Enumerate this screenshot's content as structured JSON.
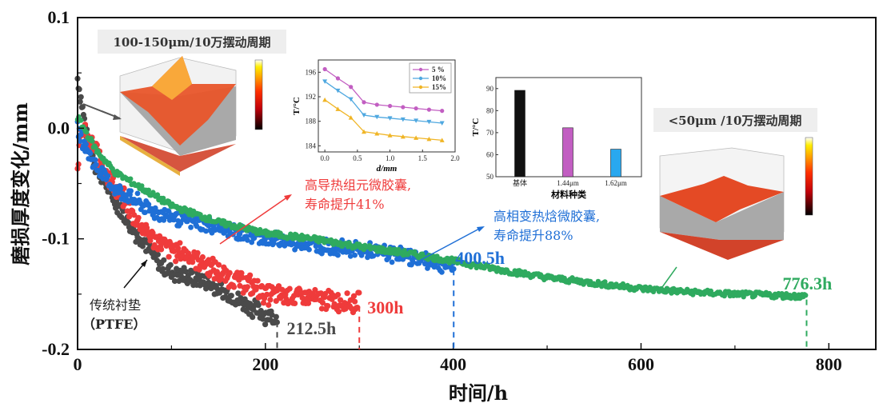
{
  "chart_data": [
    {
      "type": "scatter",
      "xlabel": "时间/h",
      "ylabel": "磨损厚度变化/mm",
      "xlim": [
        0,
        850
      ],
      "ylim": [
        -0.2,
        0.1
      ],
      "xticks": [
        0,
        200,
        400,
        600,
        800
      ],
      "xtick_labels": [
        "0",
        "200",
        "400",
        "600",
        "800"
      ],
      "yticks": [
        0.1,
        0.0,
        -0.1,
        -0.2
      ],
      "ytick_labels": [
        "0.1",
        "0.0",
        "-0.1",
        "-0.2"
      ],
      "grid": false,
      "series": [
        {
          "name": "传统衬垫(PTFE)",
          "color": "#4a4a4a",
          "end_time": 212.5,
          "end_label": "212.5h",
          "points": [
            [
              0,
              0.045
            ],
            [
              5,
              0.02
            ],
            [
              10,
              -0.01
            ],
            [
              20,
              -0.035
            ],
            [
              30,
              -0.05
            ],
            [
              40,
              -0.065
            ],
            [
              50,
              -0.08
            ],
            [
              60,
              -0.093
            ],
            [
              70,
              -0.1
            ],
            [
              80,
              -0.115
            ],
            [
              90,
              -0.125
            ],
            [
              100,
              -0.13
            ],
            [
              120,
              -0.135
            ],
            [
              140,
              -0.14
            ],
            [
              160,
              -0.15
            ],
            [
              180,
              -0.16
            ],
            [
              200,
              -0.168
            ],
            [
              212.5,
              -0.172
            ]
          ]
        },
        {
          "name": "高导热组元微胶囊",
          "color": "#ef3b3b",
          "end_time": 300,
          "end_label": "300h",
          "points": [
            [
              0,
              -0.03
            ],
            [
              5,
              0.0
            ],
            [
              10,
              -0.01
            ],
            [
              20,
              -0.02
            ],
            [
              30,
              -0.04
            ],
            [
              40,
              -0.055
            ],
            [
              50,
              -0.065
            ],
            [
              60,
              -0.08
            ],
            [
              70,
              -0.09
            ],
            [
              80,
              -0.1
            ],
            [
              100,
              -0.11
            ],
            [
              120,
              -0.115
            ],
            [
              140,
              -0.125
            ],
            [
              160,
              -0.135
            ],
            [
              180,
              -0.14
            ],
            [
              200,
              -0.15
            ],
            [
              230,
              -0.152
            ],
            [
              260,
              -0.155
            ],
            [
              300,
              -0.158
            ]
          ]
        },
        {
          "name": "高相变热焓微胶囊",
          "color": "#1f6fd6",
          "end_time": 400.5,
          "end_label": "400.5h",
          "points": [
            [
              0,
              0.0
            ],
            [
              5,
              -0.01
            ],
            [
              10,
              -0.02
            ],
            [
              20,
              -0.035
            ],
            [
              30,
              -0.045
            ],
            [
              40,
              -0.055
            ],
            [
              50,
              -0.06
            ],
            [
              60,
              -0.065
            ],
            [
              80,
              -0.075
            ],
            [
              100,
              -0.08
            ],
            [
              150,
              -0.09
            ],
            [
              200,
              -0.1
            ],
            [
              250,
              -0.105
            ],
            [
              300,
              -0.11
            ],
            [
              350,
              -0.115
            ],
            [
              400.5,
              -0.125
            ]
          ]
        },
        {
          "name": "<50μm",
          "color": "#2faa5f",
          "end_time": 776.3,
          "end_label": "776.3h",
          "points": [
            [
              0,
              0.01
            ],
            [
              10,
              -0.005
            ],
            [
              20,
              -0.02
            ],
            [
              30,
              -0.03
            ],
            [
              40,
              -0.04
            ],
            [
              50,
              -0.045
            ],
            [
              60,
              -0.05
            ],
            [
              80,
              -0.06
            ],
            [
              100,
              -0.07
            ],
            [
              150,
              -0.085
            ],
            [
              200,
              -0.095
            ],
            [
              250,
              -0.1
            ],
            [
              300,
              -0.107
            ],
            [
              350,
              -0.113
            ],
            [
              400,
              -0.12
            ],
            [
              450,
              -0.128
            ],
            [
              500,
              -0.135
            ],
            [
              550,
              -0.14
            ],
            [
              600,
              -0.145
            ],
            [
              650,
              -0.148
            ],
            [
              700,
              -0.15
            ],
            [
              776.3,
              -0.152
            ]
          ]
        }
      ],
      "annotations": {
        "ptfe_label_line1": "传统衬垫",
        "ptfe_label_line2": "（PTFE）",
        "red_label_line1": "高导热组元微胶囊,",
        "red_label_line2": "寿命提升41%",
        "blue_label_line1": "高相变热焓微胶囊,",
        "blue_label_line2": "寿命提升88%",
        "box_left": "100-150μm/10万摆动周期",
        "box_right": "<50μm /10万摆动周期"
      }
    },
    {
      "type": "line",
      "xlabel": "d/mm",
      "ylabel": "T/°C",
      "xlim": [
        -0.1,
        2.0
      ],
      "ylim": [
        183,
        198
      ],
      "xticks": [
        0.0,
        0.5,
        1.0,
        1.5,
        2.0
      ],
      "xtick_labels": [
        "0.0",
        "0.5",
        "1.0",
        "1.5",
        "2.0"
      ],
      "yticks": [
        184,
        188,
        192,
        196
      ],
      "ytick_labels": [
        "184",
        "188",
        "192",
        "196"
      ],
      "legend": "top-right",
      "x": [
        0.0,
        0.2,
        0.4,
        0.6,
        0.8,
        1.0,
        1.2,
        1.4,
        1.6,
        1.8
      ],
      "series": [
        {
          "name": "5 %",
          "color": "#c25ec2",
          "marker": "circle",
          "values": [
            196.5,
            195.0,
            193.6,
            191.1,
            190.7,
            190.5,
            190.3,
            190.1,
            189.9,
            189.7
          ]
        },
        {
          "name": "10%",
          "color": "#4fa8e0",
          "marker": "triangle-down",
          "values": [
            194.5,
            193.0,
            191.6,
            189.0,
            188.7,
            188.5,
            188.3,
            188.1,
            187.9,
            187.7
          ]
        },
        {
          "name": "15%",
          "color": "#f0b526",
          "marker": "triangle-up",
          "values": [
            191.5,
            190.0,
            188.6,
            186.3,
            186.0,
            185.7,
            185.5,
            185.3,
            185.1,
            184.9
          ]
        }
      ]
    },
    {
      "type": "bar",
      "xlabel": "材料种类",
      "ylabel": "T/°C",
      "ylim": [
        50,
        95
      ],
      "yticks": [
        50,
        60,
        70,
        80,
        90
      ],
      "ytick_labels": [
        "50",
        "60",
        "70",
        "80",
        "90"
      ],
      "categories": [
        "基体",
        "1.44μm",
        "1.62μm"
      ],
      "category_colors": [
        "#111111",
        "#c25ec2",
        "#29a8ef"
      ],
      "values": [
        89.2,
        72.2,
        62.5
      ]
    }
  ],
  "colorbar_colors": [
    "#000000",
    "#c0000a",
    "#ff2a00",
    "#ff8c00",
    "#ffe800",
    "#ffffff"
  ]
}
